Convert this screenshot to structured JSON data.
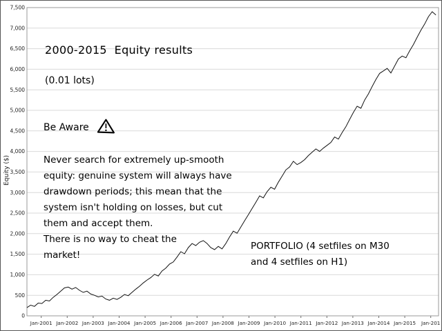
{
  "chart_data": {
    "type": "line",
    "title": "2000-2015  Equity results",
    "subtitle": "(0.01 lots)",
    "ylabel": "Equity ($)",
    "ylim": [
      0,
      7500
    ],
    "x_range": [
      2000.45,
      2016.3
    ],
    "grid": "horizontal",
    "line_color": "#111111",
    "grid_color": "#d9d9d9",
    "ytick_values": [
      0,
      500,
      1000,
      1500,
      2000,
      2500,
      3000,
      3500,
      4000,
      4500,
      5000,
      5500,
      6000,
      6500,
      7000,
      7500
    ],
    "ytick_labels": [
      "0",
      "500",
      "1,000",
      "1,500",
      "2,000",
      "2,500",
      "3,000",
      "3,500",
      "4,000",
      "4,500",
      "5,000",
      "5,500",
      "6,000",
      "6,500",
      "7,000",
      "7,500"
    ],
    "xtick_values": [
      2001,
      2002,
      2003,
      2004,
      2005,
      2006,
      2007,
      2008,
      2009,
      2010,
      2011,
      2012,
      2013,
      2014,
      2015,
      2016
    ],
    "xtick_labels": [
      "Jan-2001",
      "Jan-2002",
      "Jan-2003",
      "Jan-2004",
      "Jan-2005",
      "Jan-2006",
      "Jan-2007",
      "Jan-2008",
      "Jan-2009",
      "Jan-2010",
      "Jan-2011",
      "Jan-2012",
      "Jan-2013",
      "Jan-2014",
      "Jan-2015",
      "Jan-201"
    ],
    "series": [
      {
        "name": "Equity",
        "x_start": 2000.45,
        "x_end": 2016.2,
        "y": [
          200,
          260,
          230,
          310,
          300,
          380,
          360,
          450,
          520,
          600,
          680,
          700,
          650,
          690,
          620,
          570,
          600,
          530,
          500,
          460,
          480,
          410,
          380,
          430,
          400,
          450,
          520,
          490,
          570,
          650,
          720,
          800,
          870,
          930,
          1010,
          970,
          1090,
          1160,
          1260,
          1310,
          1430,
          1560,
          1510,
          1660,
          1760,
          1710,
          1790,
          1830,
          1760,
          1660,
          1610,
          1690,
          1630,
          1760,
          1920,
          2060,
          2010,
          2160,
          2310,
          2460,
          2610,
          2760,
          2920,
          2870,
          3020,
          3130,
          3080,
          3250,
          3400,
          3550,
          3620,
          3760,
          3680,
          3730,
          3800,
          3900,
          3980,
          4060,
          4000,
          4080,
          4150,
          4220,
          4350,
          4300,
          4460,
          4600,
          4780,
          4950,
          5100,
          5050,
          5250,
          5400,
          5580,
          5750,
          5900,
          5960,
          6020,
          5910,
          6080,
          6250,
          6320,
          6280,
          6450,
          6600,
          6780,
          6950,
          7100,
          7280,
          7400,
          7320
        ]
      }
    ]
  },
  "annotations": {
    "be_aware": "Be Aware",
    "note": "Never search for extremely up-smooth\nequity: genuine system will always have\ndrawdown periods; this mean that the\nsystem isn't holding on losses, but cut\nthem and accept them.\nThere is no way to cheat the\nmarket!",
    "portfolio": "PORTFOLIO (4 setfiles on M30\nand 4 setfiles on H1)"
  }
}
